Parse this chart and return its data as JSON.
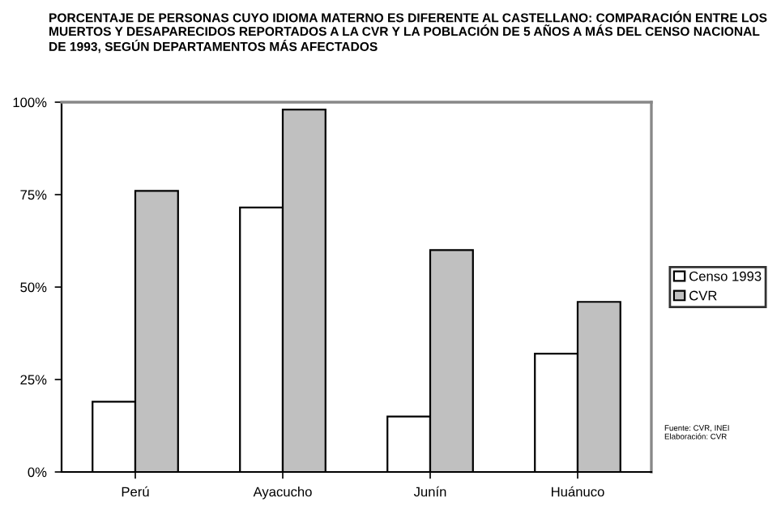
{
  "chart_data": {
    "type": "bar",
    "title": "PORCENTAJE DE PERSONAS CUYO IDIOMA MATERNO ES DIFERENTE AL CASTELLANO: COMPARACIÓN ENTRE LOS MUERTOS Y DESAPARECIDOS REPORTADOS A LA CVR Y LA POBLACIÓN DE 5 AÑOS A MÁS DEL CENSO NACIONAL DE 1993, SEGÚN DEPARTAMENTOS MÁS AFECTADOS",
    "categories": [
      "Perú",
      "Ayacucho",
      "Junín",
      "Huánuco"
    ],
    "series": [
      {
        "name": "Censo 1993",
        "color": "#ffffff",
        "values": [
          19,
          71.5,
          15,
          32
        ]
      },
      {
        "name": "CVR",
        "color": "#c0c0c0",
        "values": [
          76,
          98,
          60,
          46
        ]
      }
    ],
    "ylim": [
      0,
      100
    ],
    "yticks": [
      {
        "value": 0,
        "label": "0%"
      },
      {
        "value": 25,
        "label": "25%"
      },
      {
        "value": 50,
        "label": "50%"
      },
      {
        "value": 75,
        "label": "75%"
      },
      {
        "value": 100,
        "label": "100%"
      }
    ],
    "legend": "right",
    "grid": false,
    "annotations": [
      "Fuente: CVR, INEI\nElaboración: CVR"
    ]
  }
}
